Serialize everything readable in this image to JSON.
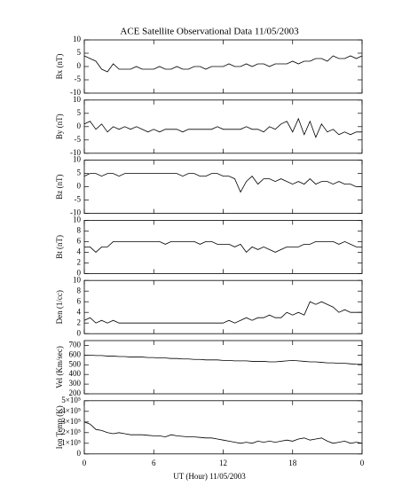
{
  "chart_data": [
    {
      "type": "line",
      "title": "ACE Satellite Observational Data   11/05/2003",
      "ylabel": "Bx (nT)",
      "color": "#000000",
      "ylim": [
        -10,
        10
      ],
      "yticks": [
        -10,
        -5,
        0,
        5,
        10
      ],
      "x": [
        0,
        0.5,
        1,
        1.5,
        2,
        2.5,
        3,
        3.5,
        4,
        4.5,
        5,
        5.5,
        6,
        6.5,
        7,
        7.5,
        8,
        8.5,
        9,
        9.5,
        10,
        10.5,
        11,
        11.5,
        12,
        12.5,
        13,
        13.5,
        14,
        14.5,
        15,
        15.5,
        16,
        16.5,
        17,
        17.5,
        18,
        18.5,
        19,
        19.5,
        20,
        20.5,
        21,
        21.5,
        22,
        22.5,
        23,
        23.5,
        24
      ],
      "values": [
        4,
        3,
        2,
        -1,
        -2,
        1,
        -1,
        -1,
        -1,
        0,
        -1,
        -1,
        -1,
        0,
        -1,
        -1,
        0,
        -1,
        -1,
        0,
        0,
        -1,
        0,
        0,
        0,
        1,
        0,
        0,
        1,
        0,
        1,
        1,
        0,
        1,
        1,
        1,
        2,
        1,
        2,
        2,
        3,
        3,
        2,
        4,
        3,
        3,
        4,
        3,
        4
      ]
    },
    {
      "type": "line",
      "ylabel": "By (nT)",
      "color": "#000000",
      "ylim": [
        -10,
        10
      ],
      "yticks": [
        -10,
        -5,
        0,
        5,
        10
      ],
      "x": [
        0,
        0.5,
        1,
        1.5,
        2,
        2.5,
        3,
        3.5,
        4,
        4.5,
        5,
        5.5,
        6,
        6.5,
        7,
        7.5,
        8,
        8.5,
        9,
        9.5,
        10,
        10.5,
        11,
        11.5,
        12,
        12.5,
        13,
        13.5,
        14,
        14.5,
        15,
        15.5,
        16,
        16.5,
        17,
        17.5,
        18,
        18.5,
        19,
        19.5,
        20,
        20.5,
        21,
        21.5,
        22,
        22.5,
        23,
        23.5,
        24
      ],
      "values": [
        1,
        2,
        -1,
        1,
        -2,
        0,
        -1,
        0,
        -1,
        0,
        -1,
        -2,
        -1,
        -2,
        -1,
        -1,
        -1,
        -2,
        -1,
        -1,
        -1,
        -1,
        -1,
        0,
        -1,
        -1,
        -1,
        -1,
        0,
        -1,
        -1,
        -2,
        0,
        -1,
        1,
        2,
        -2,
        3,
        -3,
        2,
        -4,
        1,
        -2,
        -1,
        -3,
        -2,
        -3,
        -2,
        -2
      ]
    },
    {
      "type": "line",
      "ylabel": "Bz (nT)",
      "color": "#000000",
      "ylim": [
        -10,
        10
      ],
      "yticks": [
        -10,
        -5,
        0,
        5,
        10
      ],
      "x": [
        0,
        0.5,
        1,
        1.5,
        2,
        2.5,
        3,
        3.5,
        4,
        4.5,
        5,
        5.5,
        6,
        6.5,
        7,
        7.5,
        8,
        8.5,
        9,
        9.5,
        10,
        10.5,
        11,
        11.5,
        12,
        12.5,
        13,
        13.5,
        14,
        14.5,
        15,
        15.5,
        16,
        16.5,
        17,
        17.5,
        18,
        18.5,
        19,
        19.5,
        20,
        20.5,
        21,
        21.5,
        22,
        22.5,
        23,
        23.5,
        24
      ],
      "values": [
        4,
        5,
        5,
        4,
        5,
        5,
        4,
        5,
        5,
        5,
        5,
        5,
        5,
        5,
        5,
        5,
        5,
        4,
        5,
        5,
        4,
        4,
        5,
        5,
        4,
        4,
        3,
        -2,
        2,
        4,
        1,
        3,
        3,
        2,
        3,
        2,
        1,
        2,
        1,
        3,
        1,
        2,
        2,
        1,
        2,
        1,
        1,
        0,
        0
      ]
    },
    {
      "type": "line",
      "ylabel": "Bt (nT)",
      "color": "#000000",
      "ylim": [
        0,
        10
      ],
      "yticks": [
        0,
        2,
        4,
        6,
        8,
        10
      ],
      "x": [
        0,
        0.5,
        1,
        1.5,
        2,
        2.5,
        3,
        3.5,
        4,
        4.5,
        5,
        5.5,
        6,
        6.5,
        7,
        7.5,
        8,
        8.5,
        9,
        9.5,
        10,
        10.5,
        11,
        11.5,
        12,
        12.5,
        13,
        13.5,
        14,
        14.5,
        15,
        15.5,
        16,
        16.5,
        17,
        17.5,
        18,
        18.5,
        19,
        19.5,
        20,
        20.5,
        21,
        21.5,
        22,
        22.5,
        23,
        23.5,
        24
      ],
      "values": [
        5,
        5,
        4,
        5,
        5,
        6,
        6,
        6,
        6,
        6,
        6,
        6,
        6,
        6,
        5.5,
        6,
        6,
        6,
        6,
        6,
        5.5,
        6,
        6,
        5.5,
        5.5,
        5.5,
        5,
        5.5,
        4,
        5,
        4.5,
        5,
        4.5,
        4,
        4.5,
        5,
        5,
        5,
        5.5,
        5.5,
        6,
        6,
        6,
        6,
        5.5,
        6,
        5.5,
        5,
        5
      ]
    },
    {
      "type": "line",
      "ylabel": "Den (1/cc)",
      "color": "#000000",
      "ylim": [
        0,
        10
      ],
      "yticks": [
        0,
        2,
        4,
        6,
        8,
        10
      ],
      "x": [
        0,
        0.5,
        1,
        1.5,
        2,
        2.5,
        3,
        3.5,
        4,
        4.5,
        5,
        5.5,
        6,
        6.5,
        7,
        7.5,
        8,
        8.5,
        9,
        9.5,
        10,
        10.5,
        11,
        11.5,
        12,
        12.5,
        13,
        13.5,
        14,
        14.5,
        15,
        15.5,
        16,
        16.5,
        17,
        17.5,
        18,
        18.5,
        19,
        19.5,
        20,
        20.5,
        21,
        21.5,
        22,
        22.5,
        23,
        23.5,
        24
      ],
      "values": [
        2.5,
        3,
        2,
        2.5,
        2,
        2.5,
        2,
        2,
        2,
        2,
        2,
        2,
        2,
        2,
        2,
        2,
        2,
        2,
        2,
        2,
        2,
        2,
        2,
        2,
        2,
        2.5,
        2,
        2.5,
        3,
        2.5,
        3,
        3,
        3.5,
        3,
        3,
        4,
        3.5,
        4,
        3.5,
        6,
        5.5,
        6,
        5.5,
        5,
        4,
        4.5,
        4,
        4,
        4
      ]
    },
    {
      "type": "line",
      "ylabel": "Vel (Km/sec)",
      "color": "#000000",
      "ylim": [
        200,
        750
      ],
      "yticks": [
        200,
        300,
        400,
        500,
        600,
        700
      ],
      "x": [
        0,
        0.5,
        1,
        1.5,
        2,
        2.5,
        3,
        3.5,
        4,
        4.5,
        5,
        5.5,
        6,
        6.5,
        7,
        7.5,
        8,
        8.5,
        9,
        9.5,
        10,
        10.5,
        11,
        11.5,
        12,
        12.5,
        13,
        13.5,
        14,
        14.5,
        15,
        15.5,
        16,
        16.5,
        17,
        17.5,
        18,
        18.5,
        19,
        19.5,
        20,
        20.5,
        21,
        21.5,
        22,
        22.5,
        23,
        23.5,
        24
      ],
      "values": [
        600,
        600,
        595,
        595,
        590,
        590,
        585,
        585,
        580,
        580,
        580,
        575,
        575,
        570,
        570,
        565,
        565,
        560,
        560,
        555,
        555,
        550,
        550,
        550,
        545,
        545,
        540,
        540,
        540,
        535,
        535,
        535,
        530,
        530,
        535,
        540,
        545,
        540,
        535,
        530,
        530,
        525,
        520,
        520,
        515,
        515,
        510,
        505,
        505
      ]
    },
    {
      "type": "line",
      "ylabel": "Ion Temp (K)",
      "xlabel": "UT (Hour)  11/05/2003",
      "color": "#000000",
      "ylim": [
        0,
        500000
      ],
      "yticks": [
        0,
        {
          "value": 100000,
          "label": "1×10⁵"
        },
        {
          "value": 200000,
          "label": "2×10⁵"
        },
        {
          "value": 300000,
          "label": "3×10⁵"
        },
        {
          "value": 400000,
          "label": "4×10⁵"
        },
        {
          "value": 500000,
          "label": "5×10⁵"
        }
      ],
      "xlim": [
        0,
        24
      ],
      "xticks": [
        0,
        6,
        12,
        18,
        {
          "value": 24,
          "label": "0"
        }
      ],
      "x": [
        0,
        0.5,
        1,
        1.5,
        2,
        2.5,
        3,
        3.5,
        4,
        4.5,
        5,
        5.5,
        6,
        6.5,
        7,
        7.5,
        8,
        8.5,
        9,
        9.5,
        10,
        10.5,
        11,
        11.5,
        12,
        12.5,
        13,
        13.5,
        14,
        14.5,
        15,
        15.5,
        16,
        16.5,
        17,
        17.5,
        18,
        18.5,
        19,
        19.5,
        20,
        20.5,
        21,
        21.5,
        22,
        22.5,
        23,
        23.5,
        24
      ],
      "values": [
        300000,
        280000,
        230000,
        220000,
        200000,
        190000,
        200000,
        190000,
        180000,
        180000,
        180000,
        175000,
        170000,
        170000,
        160000,
        180000,
        170000,
        165000,
        160000,
        160000,
        155000,
        150000,
        150000,
        140000,
        130000,
        120000,
        110000,
        100000,
        110000,
        100000,
        120000,
        110000,
        120000,
        110000,
        120000,
        130000,
        120000,
        140000,
        150000,
        130000,
        140000,
        150000,
        120000,
        100000,
        110000,
        120000,
        100000,
        110000,
        100000
      ]
    }
  ]
}
